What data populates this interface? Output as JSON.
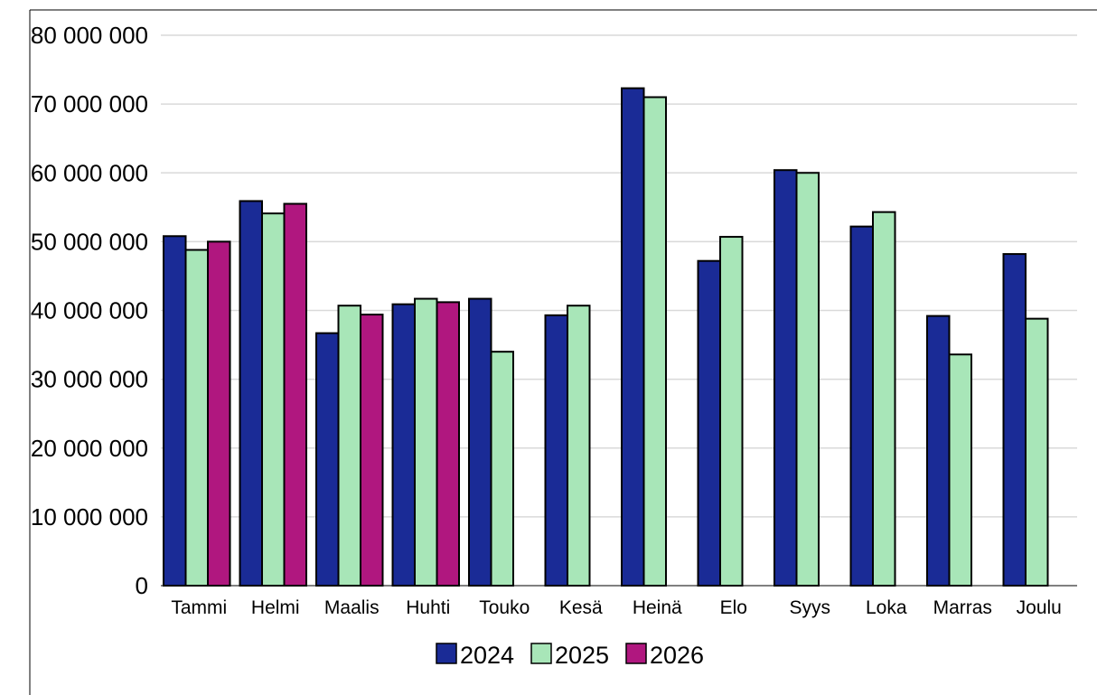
{
  "chart_data": {
    "type": "bar",
    "title": "",
    "xlabel": "",
    "ylabel": "",
    "ylim": [
      0,
      80000000
    ],
    "yticks": [
      0,
      10000000,
      20000000,
      30000000,
      40000000,
      50000000,
      60000000,
      70000000,
      80000000
    ],
    "ytick_labels": [
      "0",
      "10 000 000",
      "20 000 000",
      "30 000 000",
      "40 000 000",
      "50 000 000",
      "60 000 000",
      "70 000 000",
      "80 000 000"
    ],
    "grid": true,
    "legend_position": "bottom",
    "categories": [
      "Tammi",
      "Helmi",
      "Maalis",
      "Huhti",
      "Touko",
      "Kesä",
      "Heinä",
      "Elo",
      "Syys",
      "Loka",
      "Marras",
      "Joulu"
    ],
    "series": [
      {
        "name": "2024",
        "color": "#1a2b96",
        "values": [
          50800000,
          55900000,
          36700000,
          40900000,
          41700000,
          39300000,
          72300000,
          47200000,
          60400000,
          52200000,
          39200000,
          48200000
        ]
      },
      {
        "name": "2025",
        "color": "#a8e6b8",
        "values": [
          48800000,
          54100000,
          40700000,
          41700000,
          34000000,
          40700000,
          71000000,
          50700000,
          60000000,
          54300000,
          33600000,
          38800000
        ]
      },
      {
        "name": "2026",
        "color": "#b0177f",
        "values": [
          50000000,
          55500000,
          39400000,
          41200000,
          null,
          null,
          null,
          null,
          null,
          null,
          null,
          null
        ]
      }
    ]
  }
}
